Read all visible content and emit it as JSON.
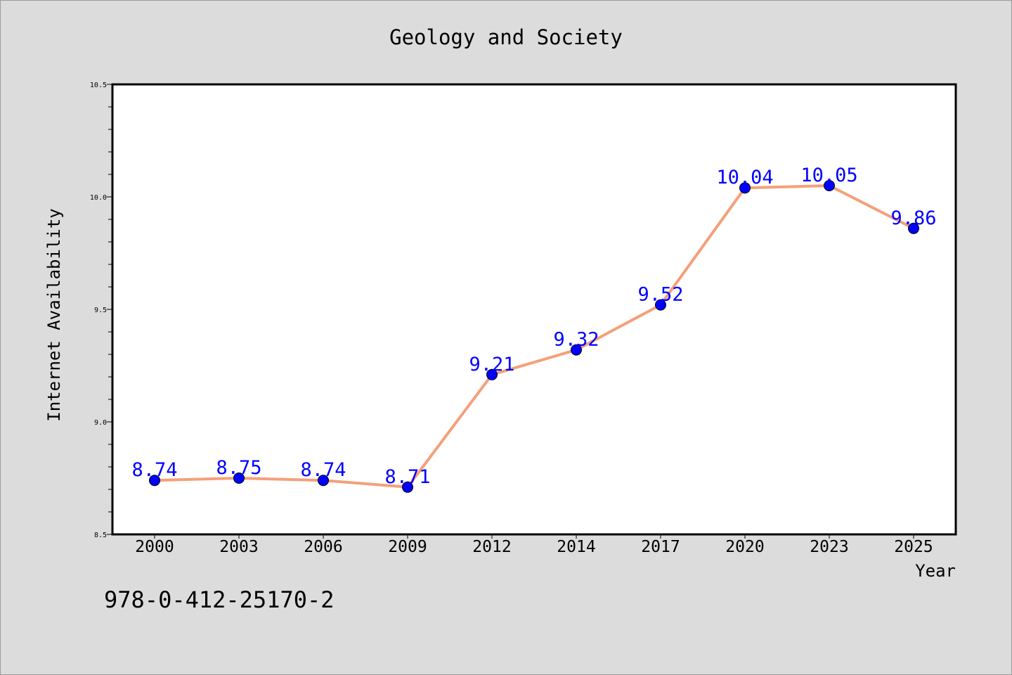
{
  "chart_data": {
    "type": "line",
    "title": "Geology and Society",
    "xlabel": "Year",
    "ylabel": "Internet Availability",
    "categories": [
      "2000",
      "2003",
      "2006",
      "2009",
      "2012",
      "2014",
      "2017",
      "2020",
      "2023",
      "2025"
    ],
    "series": [
      {
        "values": [
          8.74,
          8.75,
          8.74,
          8.71,
          9.21,
          9.32,
          9.52,
          10.04,
          10.05,
          9.86
        ]
      }
    ],
    "data_labels": [
      "8.74",
      "8.75",
      "8.74",
      "8.71",
      "9.21",
      "9.32",
      "9.52",
      "10.04",
      "10.05",
      "9.86"
    ],
    "ylim": [
      8.5,
      10.5
    ],
    "y_ticks": [
      "8.5",
      "9.0",
      "9.5",
      "10.0",
      "10.5"
    ],
    "grid": false,
    "legend": "none",
    "colors": {
      "line": "#f4a07a",
      "marker": "#0000ff",
      "data_label": "#0000ff",
      "background": "#dcdcdc",
      "plot_background": "#ffffff"
    }
  },
  "footer_text": "978-0-412-25170-2"
}
